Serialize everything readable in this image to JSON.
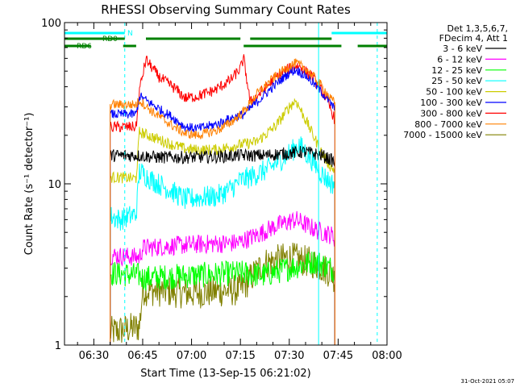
{
  "chart_data": {
    "type": "line",
    "title": "RHESSI Observing Summary Count Rates",
    "xlabel": "Start Time (13-Sep-15 06:21:02)",
    "ylabel": "Count Rate (s⁻¹ detector⁻¹)",
    "x_tick_labels": [
      "06:30",
      "06:45",
      "07:00",
      "07:15",
      "07:30",
      "07:45",
      "08:00"
    ],
    "x_tick_minutes": [
      30,
      45,
      60,
      75,
      90,
      105,
      120
    ],
    "xlim_minutes": [
      21,
      120
    ],
    "y_tick_labels": [
      "1",
      "10",
      "100"
    ],
    "y_tick_values": [
      1,
      10,
      100
    ],
    "ylim": [
      1,
      100
    ],
    "yscale": "log",
    "legend_placement": "right",
    "legend_header": [
      "Det 1,3,5,6,7,",
      "FDecim 4, Att 1"
    ],
    "date_stamp": "31-Oct-2021 05:07",
    "status_bands": [
      {
        "label": "N",
        "color": "#00ffff",
        "segments": [
          [
            21,
            39.5
          ],
          [
            103,
            120
          ]
        ]
      },
      {
        "label": "RD0",
        "color": "#008000",
        "segments": [
          [
            21,
            39.5
          ],
          [
            46,
            75
          ],
          [
            78,
            103
          ]
        ]
      },
      {
        "label": "RD6",
        "color": "#008000",
        "segments": [
          [
            21,
            29
          ],
          [
            39,
            43
          ],
          [
            76,
            106
          ],
          [
            111,
            121
          ]
        ]
      }
    ],
    "vertical_markers": [
      {
        "minute": 21,
        "style": "solid",
        "color": "#00ffff"
      },
      {
        "minute": 39.5,
        "style": "dashed",
        "color": "#00ffff"
      },
      {
        "minute": 99,
        "style": "solid",
        "color": "#00ffff"
      },
      {
        "minute": 117,
        "style": "dashed",
        "color": "#00ffff"
      }
    ],
    "x_start_minute": 35,
    "x_end_minute": 104,
    "series": [
      {
        "name": "3 - 6 keV",
        "color": "#000000",
        "noise": 0.04,
        "points": [
          [
            35,
            15
          ],
          [
            43,
            15
          ],
          [
            50,
            14.6
          ],
          [
            60,
            14.6
          ],
          [
            70,
            14.8
          ],
          [
            75,
            15
          ],
          [
            82,
            15
          ],
          [
            90,
            15.5
          ],
          [
            95,
            15.8
          ],
          [
            100,
            15
          ],
          [
            103,
            14
          ],
          [
            104,
            13.5
          ]
        ]
      },
      {
        "name": "6 - 12 keV",
        "color": "#ff00ff",
        "noise": 0.06,
        "points": [
          [
            35,
            3.6
          ],
          [
            44,
            3.5
          ],
          [
            45,
            4.0
          ],
          [
            60,
            4.2
          ],
          [
            74,
            4.3
          ],
          [
            80,
            4.8
          ],
          [
            86,
            5.5
          ],
          [
            92,
            6.0
          ],
          [
            98,
            5.2
          ],
          [
            103,
            4.8
          ],
          [
            104,
            4.6
          ]
        ]
      },
      {
        "name": "12 - 25 keV",
        "color": "#00ff00",
        "noise": 0.08,
        "points": [
          [
            35,
            2.8
          ],
          [
            44,
            2.7
          ],
          [
            45,
            2.6
          ],
          [
            60,
            2.7
          ],
          [
            75,
            2.8
          ],
          [
            82,
            2.7
          ],
          [
            90,
            3.0
          ],
          [
            98,
            3.3
          ],
          [
            103,
            3.0
          ],
          [
            104,
            2.9
          ]
        ]
      },
      {
        "name": "25 - 50 keV",
        "color": "#00ffff",
        "noise": 0.07,
        "points": [
          [
            35,
            6.3
          ],
          [
            38,
            6.0
          ],
          [
            43,
            6.5
          ],
          [
            44,
            12
          ],
          [
            48,
            10.5
          ],
          [
            54,
            9.0
          ],
          [
            58,
            8.0
          ],
          [
            62,
            8.2
          ],
          [
            68,
            8.4
          ],
          [
            72,
            9.3
          ],
          [
            75,
            10.5
          ],
          [
            78,
            11.0
          ],
          [
            84,
            12.5
          ],
          [
            90,
            15.5
          ],
          [
            93,
            17.5
          ],
          [
            97,
            14.0
          ],
          [
            100,
            11.5
          ],
          [
            103,
            10.0
          ],
          [
            104,
            10.2
          ]
        ]
      },
      {
        "name": "50 - 100 keV",
        "color": "#cccc00",
        "noise": 0.035,
        "points": [
          [
            35,
            11.0
          ],
          [
            43,
            10.8
          ],
          [
            44,
            21
          ],
          [
            48,
            19.5
          ],
          [
            54,
            17.5
          ],
          [
            58,
            16.5
          ],
          [
            62,
            16.2
          ],
          [
            68,
            16.3
          ],
          [
            72,
            17.0
          ],
          [
            75,
            17.5
          ],
          [
            80,
            18.2
          ],
          [
            86,
            23
          ],
          [
            90,
            30
          ],
          [
            92,
            33
          ],
          [
            95,
            25
          ],
          [
            100,
            15.5
          ],
          [
            103,
            12.5
          ],
          [
            104,
            12.3
          ]
        ]
      },
      {
        "name": "100 - 300 keV",
        "color": "#0000ff",
        "noise": 0.03,
        "points": [
          [
            35,
            27
          ],
          [
            43,
            27
          ],
          [
            44,
            35
          ],
          [
            48,
            31
          ],
          [
            54,
            26
          ],
          [
            58,
            22.5
          ],
          [
            62,
            22.0
          ],
          [
            68,
            23.5
          ],
          [
            72,
            25.5
          ],
          [
            76,
            27
          ],
          [
            80,
            32
          ],
          [
            85,
            40
          ],
          [
            90,
            49
          ],
          [
            92,
            51
          ],
          [
            95,
            47
          ],
          [
            98,
            41
          ],
          [
            101,
            35
          ],
          [
            103,
            31
          ],
          [
            104,
            29
          ]
        ]
      },
      {
        "name": "300 - 800 keV",
        "color": "#ff0000",
        "noise": 0.035,
        "points": [
          [
            35,
            22.5
          ],
          [
            43,
            22.5
          ],
          [
            44,
            38
          ],
          [
            46,
            59
          ],
          [
            50,
            46
          ],
          [
            55,
            39
          ],
          [
            58,
            34
          ],
          [
            62,
            35
          ],
          [
            67,
            38
          ],
          [
            72,
            44
          ],
          [
            75,
            52
          ],
          [
            76,
            60
          ],
          [
            78,
            32
          ],
          [
            82,
            38
          ],
          [
            86,
            46
          ],
          [
            90,
            52
          ],
          [
            93,
            54
          ],
          [
            97,
            46
          ],
          [
            101,
            35
          ],
          [
            103,
            28
          ],
          [
            104,
            25
          ]
        ]
      },
      {
        "name": "800 - 7000 keV",
        "color": "#ff8000",
        "noise": 0.03,
        "points": [
          [
            35,
            31
          ],
          [
            43,
            31
          ],
          [
            44,
            33
          ],
          [
            48,
            28
          ],
          [
            54,
            23
          ],
          [
            58,
            20.5
          ],
          [
            62,
            20.0
          ],
          [
            68,
            21.5
          ],
          [
            72,
            24
          ],
          [
            76,
            28
          ],
          [
            80,
            36
          ],
          [
            85,
            45
          ],
          [
            90,
            54
          ],
          [
            92,
            56
          ],
          [
            95,
            52
          ],
          [
            98,
            45
          ],
          [
            101,
            38
          ],
          [
            103,
            33
          ],
          [
            104,
            32
          ]
        ]
      },
      {
        "name": "7000 - 15000 keV",
        "color": "#808000",
        "noise": 0.1,
        "points": [
          [
            35,
            1.2
          ],
          [
            44,
            1.3
          ],
          [
            45,
            2.2
          ],
          [
            60,
            2.1
          ],
          [
            75,
            2.2
          ],
          [
            82,
            3.2
          ],
          [
            90,
            3.5
          ],
          [
            98,
            3.2
          ],
          [
            103,
            2.8
          ],
          [
            104,
            2.6
          ]
        ]
      }
    ]
  }
}
